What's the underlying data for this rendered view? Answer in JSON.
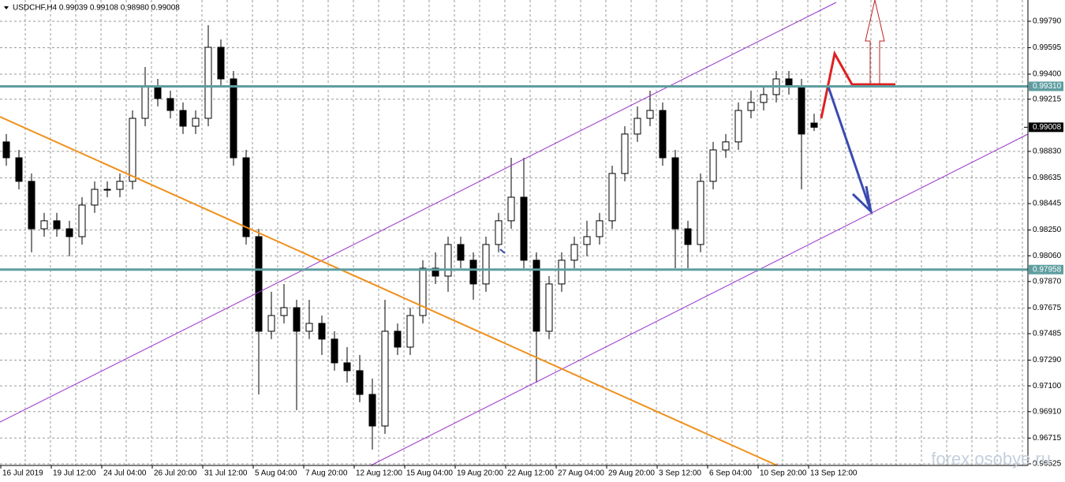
{
  "chart_data": {
    "type": "candlestick",
    "title": "USDCHF,H4  0.99039 0.99108 0.98980 0.99008",
    "watermark": "forex.osobye.ru",
    "categories": [
      "16 Jul 2019",
      null,
      null,
      null,
      "19 Jul 12:00",
      null,
      null,
      null,
      "24 Jul 04:00",
      null,
      null,
      null,
      "26 Jul 20:00",
      null,
      null,
      null,
      "31 Jul 12:00",
      null,
      null,
      null,
      "5 Aug 04:00",
      null,
      null,
      null,
      "7 Aug 20:00",
      null,
      null,
      null,
      "12 Aug 12:00",
      null,
      null,
      null,
      "15 Aug 04:00",
      null,
      null,
      null,
      "19 Aug 20:00",
      null,
      null,
      null,
      "22 Aug 12:00",
      null,
      null,
      null,
      "27 Aug 04:00",
      null,
      null,
      null,
      "29 Aug 20:00",
      null,
      null,
      null,
      "3 Sep 12:00",
      null,
      null,
      null,
      "6 Sep 04:00",
      null,
      null,
      null,
      "10 Sep 20:00",
      null,
      null,
      null,
      "13 Sep 12:00"
    ],
    "open": [
      0.989,
      0.98783,
      0.98609,
      0.98259,
      0.98318,
      0.98259,
      0.98201,
      0.98434,
      0.9855,
      0.9855,
      0.98609,
      0.99074,
      0.99307,
      0.9922,
      0.99132,
      0.99016,
      0.99074,
      0.99598,
      0.99365,
      0.98783,
      0.98201,
      0.97503,
      0.97619,
      0.97677,
      0.97503,
      0.97561,
      0.97445,
      0.9727,
      0.97212,
      0.97037,
      0.96804,
      0.97503,
      0.97386,
      0.97619,
      0.97968,
      0.9791,
      0.98143,
      0.98027,
      0.97852,
      0.98143,
      0.98318,
      0.98492,
      0.98027,
      0.97503,
      0.97852,
      0.98027,
      0.98143,
      0.98201,
      0.98318,
      0.98667,
      0.98958,
      0.99074,
      0.99132,
      0.98783,
      0.98259,
      0.98143,
      0.98609,
      0.98841,
      0.989,
      0.99132,
      0.99191,
      0.99249,
      0.99365,
      0.99307,
      0.99039
    ],
    "high": [
      0.98958,
      0.98841,
      0.98667,
      0.98376,
      0.98376,
      0.98318,
      0.98492,
      0.98609,
      0.98609,
      0.98667,
      0.99132,
      0.99452,
      0.99365,
      0.99278,
      0.99191,
      0.99132,
      0.99761,
      0.99656,
      0.99423,
      0.98841,
      0.98259,
      0.97794,
      0.97852,
      0.97735,
      0.97735,
      0.97619,
      0.97503,
      0.97386,
      0.97328,
      0.97154,
      0.97735,
      0.97561,
      0.97677,
      0.98027,
      0.98085,
      0.98201,
      0.98201,
      0.98085,
      0.98201,
      0.98376,
      0.98783,
      0.98783,
      0.98085,
      0.9791,
      0.98085,
      0.98201,
      0.98318,
      0.98376,
      0.98725,
      0.99016,
      0.99162,
      0.99278,
      0.99191,
      0.98841,
      0.98318,
      0.98667,
      0.989,
      0.98958,
      0.99191,
      0.99278,
      0.99307,
      0.99423,
      0.99423,
      0.99365,
      0.99108
    ],
    "low": [
      0.98725,
      0.9855,
      0.98085,
      0.98201,
      0.98201,
      0.98056,
      0.98143,
      0.98376,
      0.98492,
      0.98492,
      0.9855,
      0.99016,
      0.99162,
      0.99074,
      0.98958,
      0.98958,
      0.99016,
      0.99307,
      0.98725,
      0.98143,
      0.97037,
      0.97445,
      0.97561,
      0.96921,
      0.97445,
      0.97328,
      0.97212,
      0.97124,
      0.96979,
      0.9663,
      0.96746,
      0.97328,
      0.97328,
      0.97561,
      0.97852,
      0.97794,
      0.97968,
      0.97735,
      0.97794,
      0.98085,
      0.98259,
      0.97968,
      0.97124,
      0.97445,
      0.97794,
      0.97968,
      0.98056,
      0.98143,
      0.98259,
      0.98609,
      0.989,
      0.99016,
      0.98725,
      0.97968,
      0.97968,
      0.98085,
      0.9855,
      0.98783,
      0.98841,
      0.99074,
      0.99132,
      0.99191,
      0.99249,
      0.9855,
      0.9898
    ],
    "close": [
      0.98783,
      0.98609,
      0.98259,
      0.98318,
      0.98259,
      0.98201,
      0.98434,
      0.9855,
      0.9855,
      0.98609,
      0.99074,
      0.99307,
      0.9922,
      0.99132,
      0.99016,
      0.99074,
      0.99598,
      0.99365,
      0.98783,
      0.98201,
      0.97503,
      0.97619,
      0.97677,
      0.97503,
      0.97561,
      0.97445,
      0.9727,
      0.97212,
      0.97037,
      0.96804,
      0.97503,
      0.97386,
      0.97619,
      0.97968,
      0.9791,
      0.98143,
      0.98027,
      0.97852,
      0.98143,
      0.98318,
      0.98492,
      0.98027,
      0.97503,
      0.97852,
      0.98027,
      0.98143,
      0.98201,
      0.98318,
      0.98667,
      0.98958,
      0.99074,
      0.99132,
      0.98783,
      0.98259,
      0.98143,
      0.98609,
      0.98841,
      0.989,
      0.99132,
      0.99191,
      0.99249,
      0.99365,
      0.99307,
      0.98958,
      0.99008
    ],
    "color": "#000000",
    "ylim": [
      0.96513,
      0.99947
    ],
    "yticks": [
      {
        "value": 0.9979,
        "label": "0.99790"
      },
      {
        "value": 0.99595,
        "label": "0.99595"
      },
      {
        "value": 0.994,
        "label": "0.99400"
      },
      {
        "value": 0.99215,
        "label": "0.99215"
      },
      {
        "value": 0.9883,
        "label": "0.98830"
      },
      {
        "value": 0.98635,
        "label": "0.98635"
      },
      {
        "value": 0.98445,
        "label": "0.98445"
      },
      {
        "value": 0.9825,
        "label": "0.98250"
      },
      {
        "value": 0.9806,
        "label": "0.98060"
      },
      {
        "value": 0.9787,
        "label": "0.97870"
      },
      {
        "value": 0.97675,
        "label": "0.97675"
      },
      {
        "value": 0.97485,
        "label": "0.97485"
      },
      {
        "value": 0.9729,
        "label": "0.97290"
      },
      {
        "value": 0.971,
        "label": "0.97100"
      },
      {
        "value": 0.9691,
        "label": "0.96910"
      },
      {
        "value": 0.96715,
        "label": "0.96715"
      },
      {
        "value": 0.96525,
        "label": "0.96525"
      }
    ],
    "levels": [
      {
        "value": 0.9931,
        "label": "0.99310"
      },
      {
        "value": 0.97958,
        "label": "0.97958"
      }
    ],
    "level_color": "#5f9ea0",
    "last_price": {
      "value": 0.99008,
      "label": "0.99008"
    },
    "grid": true
  }
}
